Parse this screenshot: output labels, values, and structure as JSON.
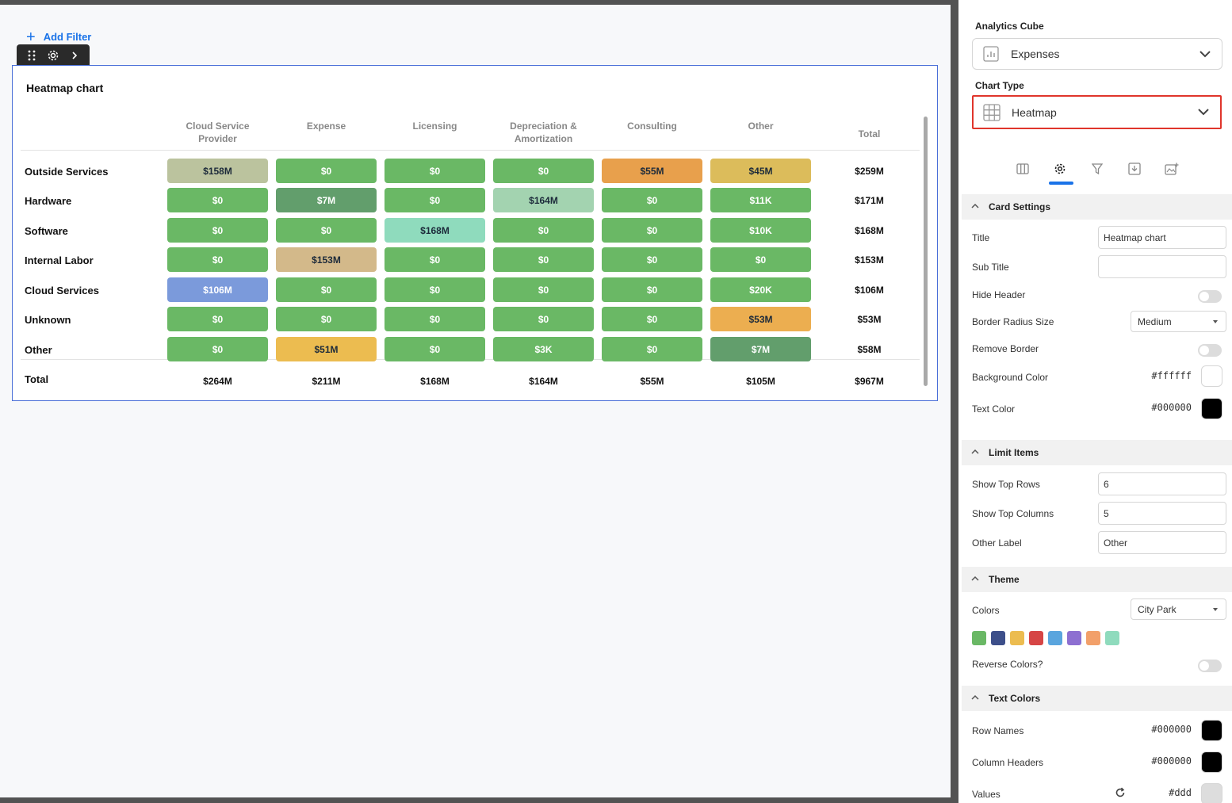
{
  "canvas": {
    "add_filter_label": "Add Filter"
  },
  "card": {
    "title": "Heatmap chart"
  },
  "chart_data": {
    "type": "heatmap",
    "title": "Heatmap chart",
    "columns": [
      "Cloud Service Provider",
      "Expense",
      "Licensing",
      "Depreciation & Amortization",
      "Consulting",
      "Other"
    ],
    "total_header": "Total",
    "rows": [
      {
        "name": "Outside Services",
        "values": [
          "$158M",
          "$0",
          "$0",
          "$0",
          "$55M",
          "$45M"
        ],
        "colors": [
          "#bbc39e",
          "#6ab865",
          "#6ab865",
          "#6ab865",
          "#e8a04c",
          "#dcbc5b"
        ],
        "total": "$259M"
      },
      {
        "name": "Hardware",
        "values": [
          "$0",
          "$7M",
          "$0",
          "$164M",
          "$0",
          "$11K"
        ],
        "colors": [
          "#6ab865",
          "#629e6c",
          "#6ab865",
          "#a3d3b0",
          "#6ab865",
          "#6ab865"
        ],
        "total": "$171M"
      },
      {
        "name": "Software",
        "values": [
          "$0",
          "$0",
          "$168M",
          "$0",
          "$0",
          "$10K"
        ],
        "colors": [
          "#6ab865",
          "#6ab865",
          "#8fdbbd",
          "#6ab865",
          "#6ab865",
          "#6ab865"
        ],
        "total": "$168M"
      },
      {
        "name": "Internal Labor",
        "values": [
          "$0",
          "$153M",
          "$0",
          "$0",
          "$0",
          "$0"
        ],
        "colors": [
          "#6ab865",
          "#d3b98a",
          "#6ab865",
          "#6ab865",
          "#6ab865",
          "#6ab865"
        ],
        "total": "$153M"
      },
      {
        "name": "Cloud Services",
        "values": [
          "$106M",
          "$0",
          "$0",
          "$0",
          "$0",
          "$20K"
        ],
        "colors": [
          "#7b9adb",
          "#6ab865",
          "#6ab865",
          "#6ab865",
          "#6ab865",
          "#6ab865"
        ],
        "total": "$106M"
      },
      {
        "name": "Unknown",
        "values": [
          "$0",
          "$0",
          "$0",
          "$0",
          "$0",
          "$53M"
        ],
        "colors": [
          "#6ab865",
          "#6ab865",
          "#6ab865",
          "#6ab865",
          "#6ab865",
          "#ecae50"
        ],
        "total": "$53M"
      },
      {
        "name": "Other",
        "values": [
          "$0",
          "$51M",
          "$0",
          "$3K",
          "$0",
          "$7M"
        ],
        "colors": [
          "#6ab865",
          "#ecbc50",
          "#6ab865",
          "#6ab865",
          "#6ab865",
          "#629e6c"
        ],
        "total": "$58M"
      }
    ],
    "dark_text_cells": [
      "0-0",
      "0-4",
      "0-5",
      "1-3",
      "2-2",
      "3-1",
      "5-5",
      "6-1"
    ],
    "total_row": {
      "name": "Total",
      "values": [
        "$264M",
        "$211M",
        "$168M",
        "$164M",
        "$55M",
        "$105M"
      ],
      "total": "$967M"
    }
  },
  "panel": {
    "analytics_cube_label": "Analytics Cube",
    "analytics_cube_value": "Expenses",
    "chart_type_label": "Chart Type",
    "chart_type_value": "Heatmap",
    "card_settings": {
      "heading": "Card Settings",
      "title_label": "Title",
      "title_value": "Heatmap chart",
      "subtitle_label": "Sub Title",
      "subtitle_value": "",
      "hide_header_label": "Hide Header",
      "border_radius_label": "Border Radius Size",
      "border_radius_value": "Medium",
      "remove_border_label": "Remove Border",
      "bg_color_label": "Background Color",
      "bg_color_value": "#ffffff",
      "text_color_label": "Text Color",
      "text_color_value": "#000000"
    },
    "limit_items": {
      "heading": "Limit Items",
      "top_rows_label": "Show Top Rows",
      "top_rows_value": "6",
      "top_cols_label": "Show Top Columns",
      "top_cols_value": "5",
      "other_label_label": "Other Label",
      "other_label_value": "Other"
    },
    "theme": {
      "heading": "Theme",
      "colors_label": "Colors",
      "colors_value": "City Park",
      "palette": [
        "#6ab865",
        "#3d4f8a",
        "#ecbc50",
        "#d64545",
        "#5aa5de",
        "#8d6fd1",
        "#f2a06a",
        "#8fdbbd"
      ],
      "reverse_label": "Reverse Colors?"
    },
    "text_colors": {
      "heading": "Text Colors",
      "row_names_label": "Row Names",
      "row_names_value": "#000000",
      "col_headers_label": "Column Headers",
      "col_headers_value": "#000000",
      "values_label": "Values",
      "values_value": "#ddd"
    }
  }
}
